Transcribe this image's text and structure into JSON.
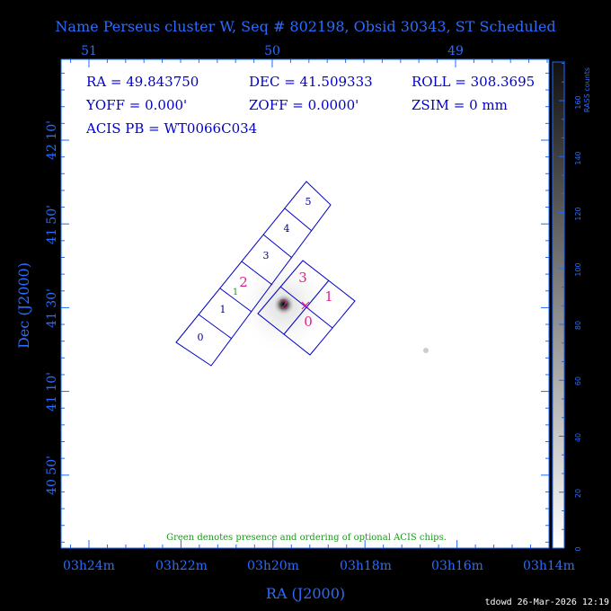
{
  "title": "Name Perseus cluster W, Seq # 802198, Obsid 30343, ST Scheduled",
  "top_axis_ticks": [
    "51",
    "50",
    "49"
  ],
  "bottom_axis_ticks": [
    "03h24m",
    "03h22m",
    "03h20m",
    "03h18m",
    "03h16m",
    "03h14m"
  ],
  "left_axis_ticks": [
    "42 10'",
    "41 50'",
    "41 30'",
    "41 10'",
    "40 50'"
  ],
  "x_axis_label": "RA (J2000)",
  "y_axis_label": "Dec (J2000)",
  "info": {
    "ra": "RA = 49.843750",
    "dec": "DEC = 41.509333",
    "roll": "ROLL = 308.3695",
    "yoff": "YOFF =   0.000'",
    "zoff": "ZOFF =  0.0000'",
    "zsim": "ZSIM = 0 mm",
    "acis_pb": "ACIS PB = WT0066C034"
  },
  "chips_s_array": [
    "0",
    "1",
    "2",
    "3",
    "4",
    "5"
  ],
  "chips_i_array": [
    "0",
    "1",
    "2",
    "3"
  ],
  "optional_chip_marker": "1",
  "note": "Green denotes presence and ordering of optional ACIS chips.",
  "colorbar": {
    "label": "RASS counts",
    "ticks": [
      "0",
      "20",
      "40",
      "60",
      "80",
      "100",
      "120",
      "140",
      "160"
    ]
  },
  "footer": "tdowd 26-Mar-2026 12:19",
  "colors": {
    "axis": "#1E6BFF",
    "chip_outline": "#0000C8",
    "imaging_numbers": "#E0208A",
    "optional": "#1A9A1A"
  }
}
